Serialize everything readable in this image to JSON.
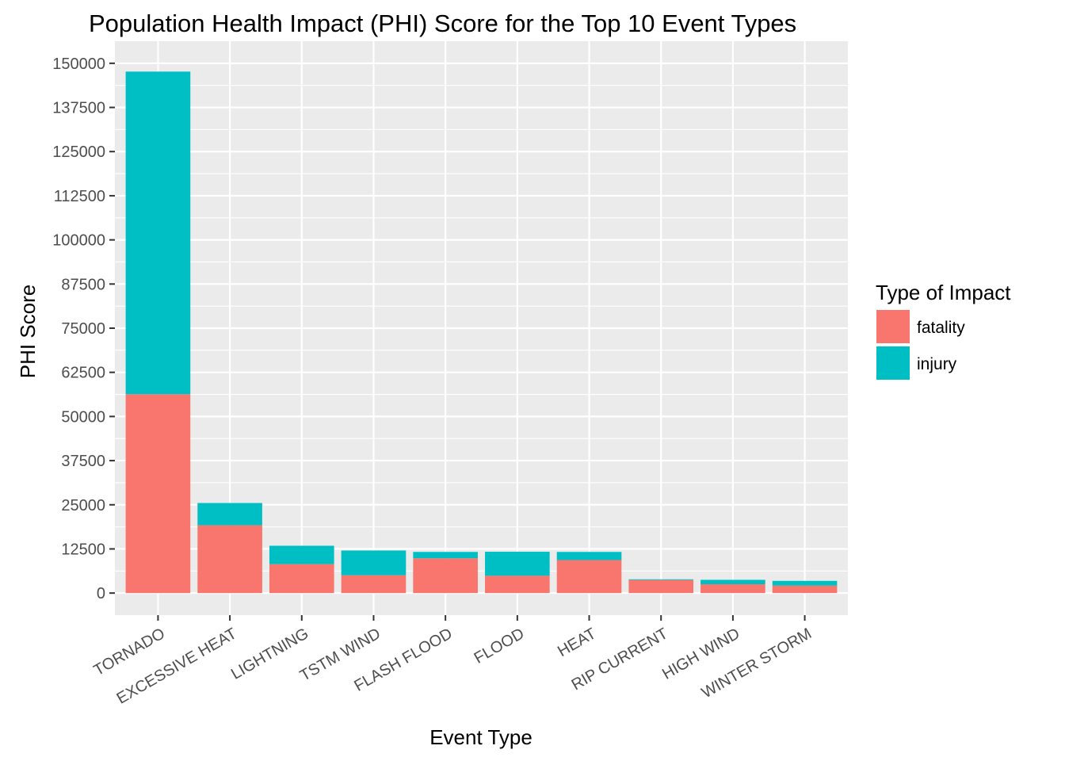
{
  "chart_data": {
    "type": "bar",
    "stacked": true,
    "title": "Population Health Impact (PHI) Score for the Top 10 Event Types",
    "xlabel": "Event Type",
    "ylabel": "PHI Score",
    "categories": [
      "TORNADO",
      "EXCESSIVE HEAT",
      "LIGHTNING",
      "TSTM WIND",
      "FLASH FLOOD",
      "FLOOD",
      "HEAT",
      "RIP CURRENT",
      "HIGH WIND",
      "WINTER STORM"
    ],
    "series": [
      {
        "name": "fatality",
        "color": "#F8766D",
        "values": [
          56300,
          19200,
          8200,
          5050,
          9850,
          4900,
          9350,
          3700,
          2500,
          2100
        ]
      },
      {
        "name": "injury",
        "color": "#00BFC4",
        "values": [
          91350,
          6300,
          5200,
          7000,
          1800,
          6800,
          2300,
          200,
          1250,
          1350
        ]
      }
    ],
    "yticks": [
      "0",
      "12500",
      "25000",
      "37500",
      "50000",
      "62500",
      "75000",
      "87500",
      "100000",
      "112500",
      "125000",
      "137500",
      "150000"
    ],
    "ylim": [
      -6250,
      156250
    ],
    "grid": true,
    "legend": {
      "title": "Type of Impact",
      "position": "right"
    }
  }
}
